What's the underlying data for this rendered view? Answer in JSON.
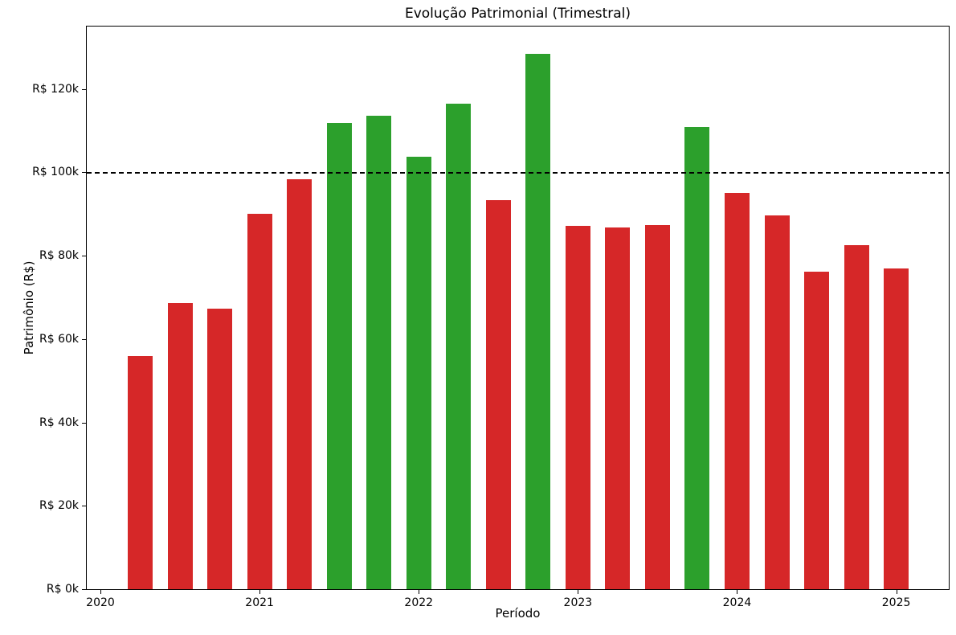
{
  "chart_data": {
    "type": "bar",
    "title": "Evolução Patrimonial (Trimestral)",
    "xlabel": "Período",
    "ylabel": "Patrimônio (R$)",
    "x_tick_labels": [
      "2020",
      "2021",
      "2022",
      "2023",
      "2024",
      "2025"
    ],
    "y_tick_values_k": [
      0,
      20,
      40,
      60,
      80,
      100,
      120
    ],
    "y_tick_labels": [
      "R$ 0k",
      "R$ 20k",
      "R$ 40k",
      "R$ 60k",
      "R$ 80k",
      "R$ 100k",
      "R$ 120k"
    ],
    "ylim_k": [
      0,
      135
    ],
    "grid": false,
    "legend": false,
    "threshold_line": {
      "value_k": 100,
      "color": "#000000",
      "style": "dashed"
    },
    "colors": {
      "above_threshold": "#2ca02c",
      "below_threshold": "#d62728"
    },
    "bars": [
      {
        "period": "2020-Q2",
        "value_k": 55.9,
        "color": "#d62728"
      },
      {
        "period": "2020-Q3",
        "value_k": 68.6,
        "color": "#d62728"
      },
      {
        "period": "2020-Q4",
        "value_k": 67.3,
        "color": "#d62728"
      },
      {
        "period": "2021-Q1",
        "value_k": 90.1,
        "color": "#d62728"
      },
      {
        "period": "2021-Q2",
        "value_k": 98.4,
        "color": "#d62728"
      },
      {
        "period": "2021-Q3",
        "value_k": 111.8,
        "color": "#2ca02c"
      },
      {
        "period": "2021-Q4",
        "value_k": 113.6,
        "color": "#2ca02c"
      },
      {
        "period": "2022-Q1",
        "value_k": 103.7,
        "color": "#2ca02c"
      },
      {
        "period": "2022-Q2",
        "value_k": 116.5,
        "color": "#2ca02c"
      },
      {
        "period": "2022-Q3",
        "value_k": 93.4,
        "color": "#d62728"
      },
      {
        "period": "2022-Q4",
        "value_k": 128.4,
        "color": "#2ca02c"
      },
      {
        "period": "2023-Q1",
        "value_k": 87.1,
        "color": "#d62728"
      },
      {
        "period": "2023-Q2",
        "value_k": 86.8,
        "color": "#d62728"
      },
      {
        "period": "2023-Q3",
        "value_k": 87.3,
        "color": "#d62728"
      },
      {
        "period": "2023-Q4",
        "value_k": 110.8,
        "color": "#2ca02c"
      },
      {
        "period": "2024-Q1",
        "value_k": 95.0,
        "color": "#d62728"
      },
      {
        "period": "2024-Q2",
        "value_k": 89.6,
        "color": "#d62728"
      },
      {
        "period": "2024-Q3",
        "value_k": 76.2,
        "color": "#d62728"
      },
      {
        "period": "2024-Q4",
        "value_k": 82.5,
        "color": "#d62728"
      },
      {
        "period": "2025-Q1",
        "value_k": 77.0,
        "color": "#d62728"
      }
    ]
  }
}
